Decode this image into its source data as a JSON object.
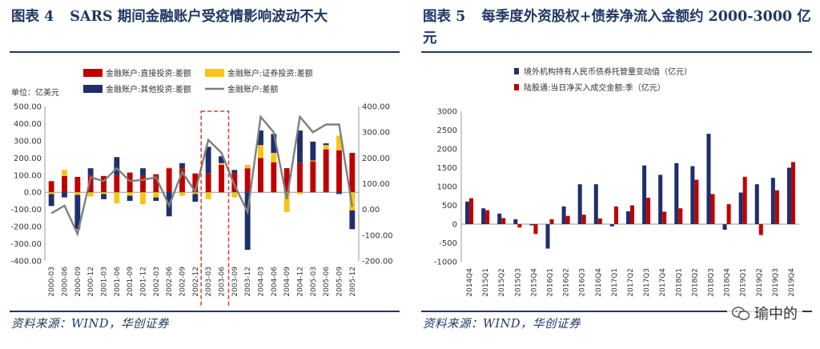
{
  "left": {
    "title_num": "图表 4",
    "title_text": "SARS 期间金融账户受疫情影响波动不大",
    "source": "资料来源：WIND，华创证券"
  },
  "right": {
    "title_num": "图表 5",
    "title_text": "每季度外资股权+债券净流入金额约 2000-3000 亿元",
    "source": "资料来源：WIND，华创证券"
  },
  "watermark": "瑜中的",
  "colors": {
    "red": "#c00000",
    "yellow": "#f5c517",
    "navy": "#1f2f6b",
    "gray": "#7f7f7f",
    "border": "#1f3864"
  },
  "chart_data": [
    {
      "type": "bar",
      "stacked": true,
      "unit_label": "单位：亿美元",
      "categories": [
        "2000-03",
        "2000-06",
        "2000-09",
        "2000-12",
        "2001-03",
        "2001-06",
        "2001-09",
        "2001-12",
        "2002-03",
        "2002-06",
        "2002-09",
        "2002-12",
        "2003-03",
        "2003-06",
        "2003-09",
        "2003-12",
        "2004-03",
        "2004-06",
        "2004-09",
        "2004-12",
        "2005-03",
        "2005-06",
        "2005-09",
        "2005-12"
      ],
      "x_tick_labels": [
        "2000-03",
        "2000-06",
        "2000-09",
        "2000-12",
        "2001-03",
        "2001-06",
        "2001-09",
        "2001-12",
        "2002-03",
        "2002-06",
        "2002-09",
        "2002-12",
        "2003-03",
        "2003-06",
        "2003-09",
        "2003-12",
        "2004-03",
        "2004-06",
        "2004-09",
        "2004-12",
        "2005-03",
        "2005-06",
        "2005-09",
        "2005-12"
      ],
      "series": [
        {
          "name": "金融账户:直接投资:差额",
          "color": "#c00000",
          "axis": "left",
          "values": [
            65,
            95,
            90,
            100,
            95,
            100,
            115,
            95,
            105,
            140,
            140,
            110,
            110,
            160,
            110,
            140,
            200,
            175,
            140,
            170,
            180,
            250,
            245,
            230
          ]
        },
        {
          "name": "金融账户:证券投资:差额",
          "color": "#f5c517",
          "axis": "left",
          "values": [
            -10,
            35,
            -15,
            -25,
            -10,
            -65,
            -20,
            -70,
            -30,
            5,
            -20,
            -10,
            -40,
            10,
            -30,
            20,
            75,
            55,
            -115,
            -10,
            5,
            25,
            85,
            -105
          ]
        },
        {
          "name": "金融账户:其他投资:差额",
          "color": "#1f2f6b",
          "axis": "left",
          "values": [
            -70,
            -30,
            -200,
            40,
            -30,
            105,
            -30,
            45,
            -20,
            -140,
            30,
            -45,
            155,
            40,
            20,
            -335,
            85,
            110,
            0,
            190,
            110,
            10,
            -10,
            -110
          ]
        },
        {
          "name": "金融账户:差额",
          "color": "#7f7f7f",
          "axis": "right",
          "line": true,
          "values": [
            -15,
            15,
            -95,
            125,
            110,
            160,
            110,
            115,
            125,
            15,
            145,
            70,
            270,
            220,
            95,
            -10,
            360,
            300,
            40,
            360,
            300,
            330,
            330,
            10
          ]
        }
      ],
      "ylim_left": [
        -400,
        500
      ],
      "yticks_left": [
        "500.00",
        "400.00",
        "300.00",
        "200.00",
        "100.00",
        "0.00",
        "-100.00",
        "-200.00",
        "-300.00",
        "-400.00"
      ],
      "ylim_right": [
        -200,
        400
      ],
      "yticks_right": [
        "400.00",
        "300.00",
        "200.00",
        "100.00",
        "0.00",
        "-100.00",
        "-200.00"
      ],
      "highlight": {
        "from": "2003-03",
        "to": "2003-06",
        "style": "dashed red box"
      },
      "legend_position": "top-left",
      "grid": false
    },
    {
      "type": "bar",
      "categories": [
        "2014Q4",
        "2015Q1",
        "2015Q2",
        "2015Q3",
        "2015Q4",
        "2016Q1",
        "2016Q2",
        "2016Q3",
        "2016Q4",
        "2017Q1",
        "2017Q2",
        "2017Q3",
        "2017Q4",
        "2018Q1",
        "2018Q2",
        "2018Q3",
        "2018Q4",
        "2019Q1",
        "2019Q2",
        "2019Q3",
        "2019Q4"
      ],
      "x_tick_labels": [
        "2014Q4",
        "2015Q1",
        "2015Q2",
        "2015Q3",
        "2015Q4",
        "2016Q1",
        "2016Q2",
        "2016Q3",
        "2016Q4",
        "2017Q1",
        "2017Q2",
        "2017Q3",
        "2017Q4",
        "2018Q1",
        "2018Q2",
        "2018Q3",
        "2018Q4",
        "2019Q1",
        "2019Q2",
        "2019Q3",
        "2019Q4"
      ],
      "series": [
        {
          "name": "境外机构持有人民币债券托管量变动值（亿元）",
          "color": "#1f2f6b",
          "values": [
            600,
            420,
            280,
            130,
            -30,
            -650,
            470,
            1060,
            1060,
            -60,
            340,
            1560,
            1310,
            1620,
            1540,
            2400,
            -150,
            840,
            1060,
            1230,
            1500
          ]
        },
        {
          "name": "陆股通:当日净买入成交金额:季（亿元）",
          "color": "#c00000",
          "values": [
            690,
            370,
            160,
            -90,
            -260,
            130,
            220,
            250,
            150,
            470,
            500,
            700,
            330,
            420,
            1180,
            800,
            530,
            1260,
            -290,
            900,
            1650
          ]
        }
      ],
      "ylim": [
        -1000,
        3000
      ],
      "yticks": [
        "3000",
        "2500",
        "2000",
        "1500",
        "1000",
        "500",
        "0",
        "-500",
        "-1000"
      ],
      "legend_position": "top",
      "grid": false
    }
  ]
}
